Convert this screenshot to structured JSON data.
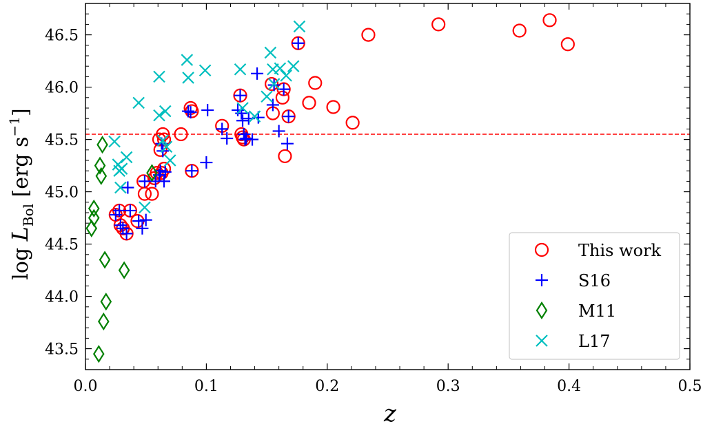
{
  "chart_data": {
    "type": "scatter",
    "xlabel": "z",
    "ylabel": "log L_Bol [erg s^-1]",
    "ylabel_parts": {
      "prefix": "log ",
      "var": "L",
      "sub": "Bol",
      "unit": " [erg s",
      "exp": "−1",
      "close": "]"
    },
    "xlim": [
      0.0,
      0.5
    ],
    "ylim": [
      43.3,
      46.8
    ],
    "xticks": [
      0.0,
      0.1,
      0.2,
      0.3,
      0.4,
      0.5
    ],
    "xtick_labels": [
      "0.0",
      "0.1",
      "0.2",
      "0.3",
      "0.4",
      "0.5"
    ],
    "yticks": [
      43.5,
      44.0,
      44.5,
      45.0,
      45.5,
      46.0,
      46.5
    ],
    "ytick_labels": [
      "43.5",
      "44.0",
      "44.5",
      "45.0",
      "45.5",
      "46.0",
      "46.5"
    ],
    "hline": {
      "y": 45.55,
      "color": "#ff0000",
      "style": "dashed"
    },
    "legend_position": "lower-right",
    "series": [
      {
        "name": "This work",
        "marker": "circle",
        "color": "#ff0000",
        "x": [
          0.025,
          0.028,
          0.029,
          0.031,
          0.034,
          0.037,
          0.043,
          0.048,
          0.049,
          0.055,
          0.057,
          0.059,
          0.061,
          0.062,
          0.063,
          0.064,
          0.065,
          0.065,
          0.079,
          0.087,
          0.088,
          0.088,
          0.113,
          0.128,
          0.129,
          0.13,
          0.131,
          0.154,
          0.155,
          0.163,
          0.164,
          0.165,
          0.168,
          0.176,
          0.185,
          0.19,
          0.205,
          0.221,
          0.234,
          0.292,
          0.359,
          0.384,
          0.399
        ],
        "y": [
          44.78,
          44.82,
          44.68,
          44.65,
          44.6,
          44.82,
          44.72,
          45.1,
          44.98,
          44.98,
          45.13,
          45.18,
          45.5,
          45.4,
          45.18,
          45.55,
          45.5,
          45.22,
          45.55,
          45.8,
          45.77,
          45.2,
          45.63,
          45.92,
          45.55,
          45.52,
          45.5,
          46.03,
          45.75,
          45.9,
          45.98,
          45.34,
          45.72,
          46.42,
          45.85,
          46.04,
          45.81,
          45.66,
          46.5,
          46.6,
          46.54,
          46.64,
          46.41
        ]
      },
      {
        "name": "S16",
        "marker": "plus",
        "color": "#0000ff",
        "x": [
          0.025,
          0.028,
          0.029,
          0.031,
          0.034,
          0.035,
          0.037,
          0.044,
          0.047,
          0.049,
          0.05,
          0.058,
          0.061,
          0.062,
          0.063,
          0.064,
          0.065,
          0.066,
          0.085,
          0.087,
          0.088,
          0.1,
          0.101,
          0.113,
          0.117,
          0.126,
          0.128,
          0.129,
          0.13,
          0.131,
          0.132,
          0.133,
          0.135,
          0.138,
          0.142,
          0.143,
          0.155,
          0.156,
          0.16,
          0.164,
          0.167,
          0.168,
          0.176
        ],
        "y": [
          44.78,
          44.82,
          44.68,
          44.65,
          44.6,
          45.04,
          44.82,
          44.72,
          44.65,
          45.1,
          44.73,
          45.1,
          45.16,
          45.2,
          45.46,
          45.39,
          45.1,
          45.19,
          45.77,
          45.76,
          45.2,
          45.28,
          45.78,
          45.6,
          45.51,
          45.78,
          45.92,
          45.75,
          45.68,
          45.55,
          45.5,
          45.51,
          45.7,
          45.5,
          46.13,
          45.71,
          45.83,
          46.02,
          45.58,
          45.98,
          45.46,
          45.72,
          46.42
        ]
      },
      {
        "name": "M11",
        "marker": "diamond",
        "color": "#008000",
        "x": [
          0.005,
          0.007,
          0.007,
          0.011,
          0.012,
          0.013,
          0.014,
          0.015,
          0.016,
          0.017,
          0.032,
          0.055
        ],
        "y": [
          44.65,
          44.75,
          44.84,
          43.45,
          45.25,
          45.15,
          45.45,
          43.76,
          44.35,
          43.95,
          44.25,
          45.18
        ]
      },
      {
        "name": "L17",
        "marker": "cross",
        "color": "#00bfbf",
        "x": [
          0.024,
          0.027,
          0.028,
          0.029,
          0.03,
          0.034,
          0.044,
          0.049,
          0.061,
          0.061,
          0.064,
          0.066,
          0.067,
          0.07,
          0.084,
          0.085,
          0.099,
          0.128,
          0.13,
          0.14,
          0.15,
          0.153,
          0.155,
          0.156,
          0.161,
          0.166,
          0.172,
          0.177
        ],
        "y": [
          45.48,
          45.26,
          45.2,
          45.04,
          45.22,
          45.33,
          45.85,
          44.85,
          46.1,
          45.73,
          45.49,
          45.77,
          45.43,
          45.3,
          46.26,
          46.09,
          46.16,
          46.17,
          45.8,
          45.72,
          45.91,
          46.33,
          46.17,
          46.03,
          46.18,
          46.11,
          46.2,
          46.58
        ]
      }
    ]
  }
}
